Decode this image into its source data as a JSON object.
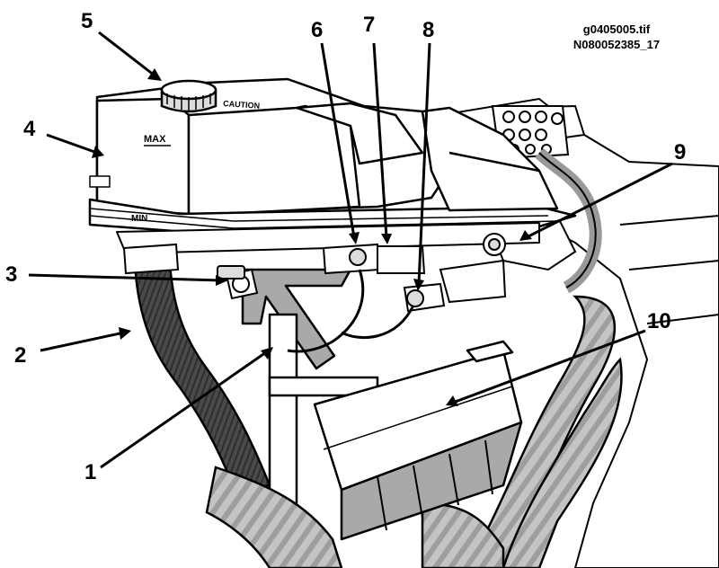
{
  "figure": {
    "file_name": "g0405005.tif",
    "part_number": "N080052385_17",
    "tank_labels": {
      "max": "MAX",
      "min": "MIN"
    },
    "callouts": [
      {
        "id": "1",
        "label": "1"
      },
      {
        "id": "2",
        "label": "2"
      },
      {
        "id": "3",
        "label": "3"
      },
      {
        "id": "4",
        "label": "4"
      },
      {
        "id": "5",
        "label": "5"
      },
      {
        "id": "6",
        "label": "6"
      },
      {
        "id": "7",
        "label": "7"
      },
      {
        "id": "8",
        "label": "8"
      },
      {
        "id": "9",
        "label": "9"
      },
      {
        "id": "10",
        "label": "10"
      }
    ]
  },
  "colors": {
    "line": "#000000",
    "hose": "#4a4a4a",
    "harness": "#bdbdbd",
    "bracket": "#a9a9a9",
    "background": "#ffffff"
  }
}
